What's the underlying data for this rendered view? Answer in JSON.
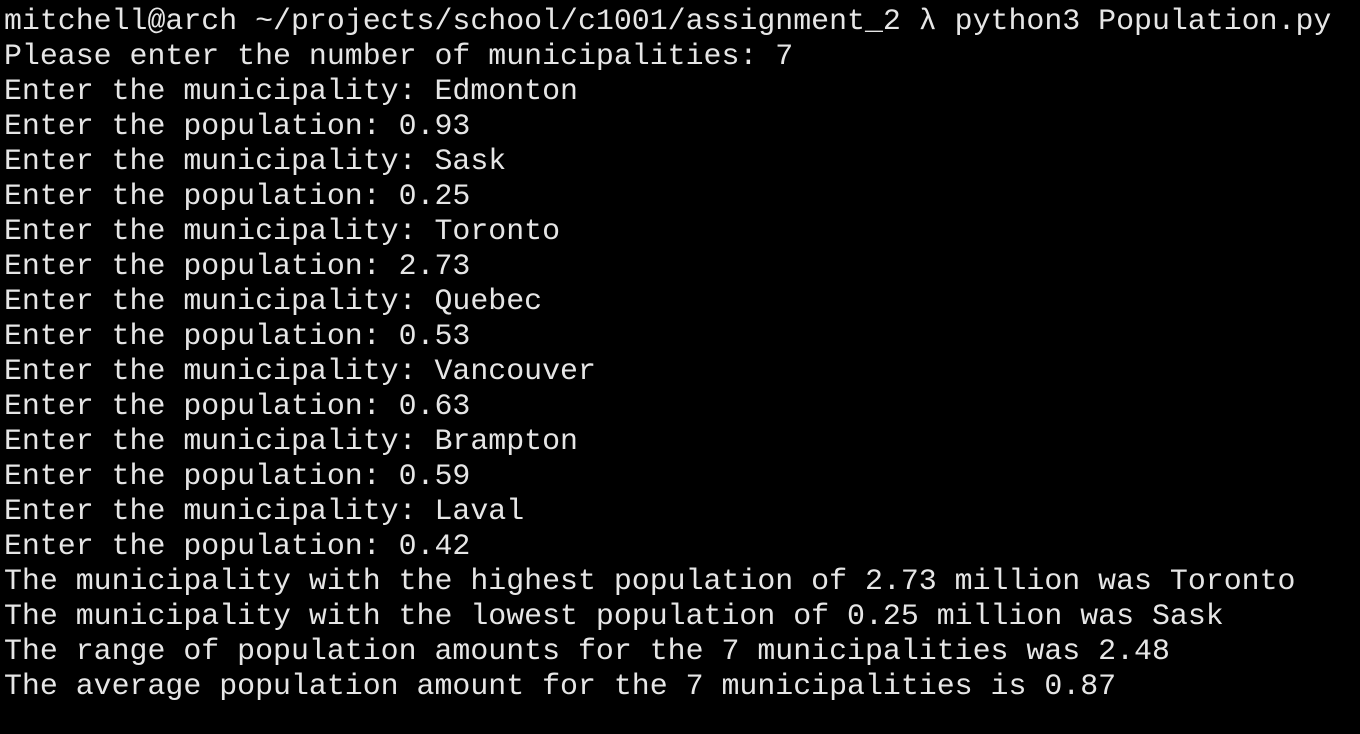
{
  "terminal": {
    "prompt": {
      "text": "mitchell@arch ~/projects/school/c1001/assignment_2 λ python3 Population.py"
    },
    "lines": [
      "Please enter the number of municipalities: 7",
      "Enter the municipality: Edmonton",
      "Enter the population: 0.93",
      "Enter the municipality: Sask",
      "Enter the population: 0.25",
      "Enter the municipality: Toronto",
      "Enter the population: 2.73",
      "Enter the municipality: Quebec",
      "Enter the population: 0.53",
      "Enter the municipality: Vancouver",
      "Enter the population: 0.63",
      "Enter the municipality: Brampton",
      "Enter the population: 0.59",
      "Enter the municipality: Laval",
      "Enter the population: 0.42",
      "The municipality with the highest population of 2.73 million was Toronto",
      "The municipality with the lowest population of 0.25 million was Sask",
      "The range of population amounts for the 7 municipalities was 2.48",
      "The average population amount for the 7 municipalities is 0.87"
    ],
    "colors": {
      "background": "#000000",
      "foreground": "#e6e6e6"
    }
  }
}
